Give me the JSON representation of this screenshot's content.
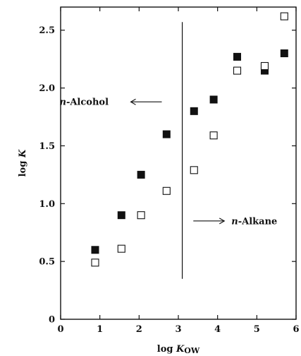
{
  "chart_data": {
    "type": "scatter",
    "xlabel": {
      "prefix": "log ",
      "var": "K",
      "sub": "OW"
    },
    "ylabel": {
      "prefix": "log ",
      "var": "K"
    },
    "xlim": [
      0,
      6
    ],
    "ylim": [
      0,
      2.7
    ],
    "xticks": [
      "0",
      "1",
      "2",
      "3",
      "4",
      "5",
      "6"
    ],
    "yticks": [
      "0",
      "0.5",
      "1.0",
      "1.5",
      "2.0",
      "2.5"
    ],
    "grid": false,
    "divider_x": 3.1,
    "divider_y_range": [
      0.35,
      2.57
    ],
    "annotations": {
      "alcohol": {
        "prefix": "n",
        "text": "-Alcohol",
        "arrow": "left",
        "at": [
          1.5,
          1.88
        ]
      },
      "alkane": {
        "prefix": "n",
        "text": "-Alkane",
        "arrow": "right",
        "at": [
          3.4,
          0.85
        ]
      }
    },
    "series": [
      {
        "marker": "filled-square",
        "x": [
          0.88,
          1.55,
          2.05,
          2.7,
          3.4,
          3.9,
          4.5,
          5.2,
          5.7
        ],
        "y": [
          0.6,
          0.9,
          1.25,
          1.6,
          1.8,
          1.9,
          2.27,
          2.15,
          2.3
        ]
      },
      {
        "marker": "open-square",
        "x": [
          0.88,
          1.55,
          2.05,
          2.7,
          3.4,
          3.9,
          4.5,
          5.2,
          5.7
        ],
        "y": [
          0.49,
          0.61,
          0.9,
          1.11,
          1.29,
          1.59,
          2.15,
          2.19,
          2.62
        ]
      }
    ]
  }
}
